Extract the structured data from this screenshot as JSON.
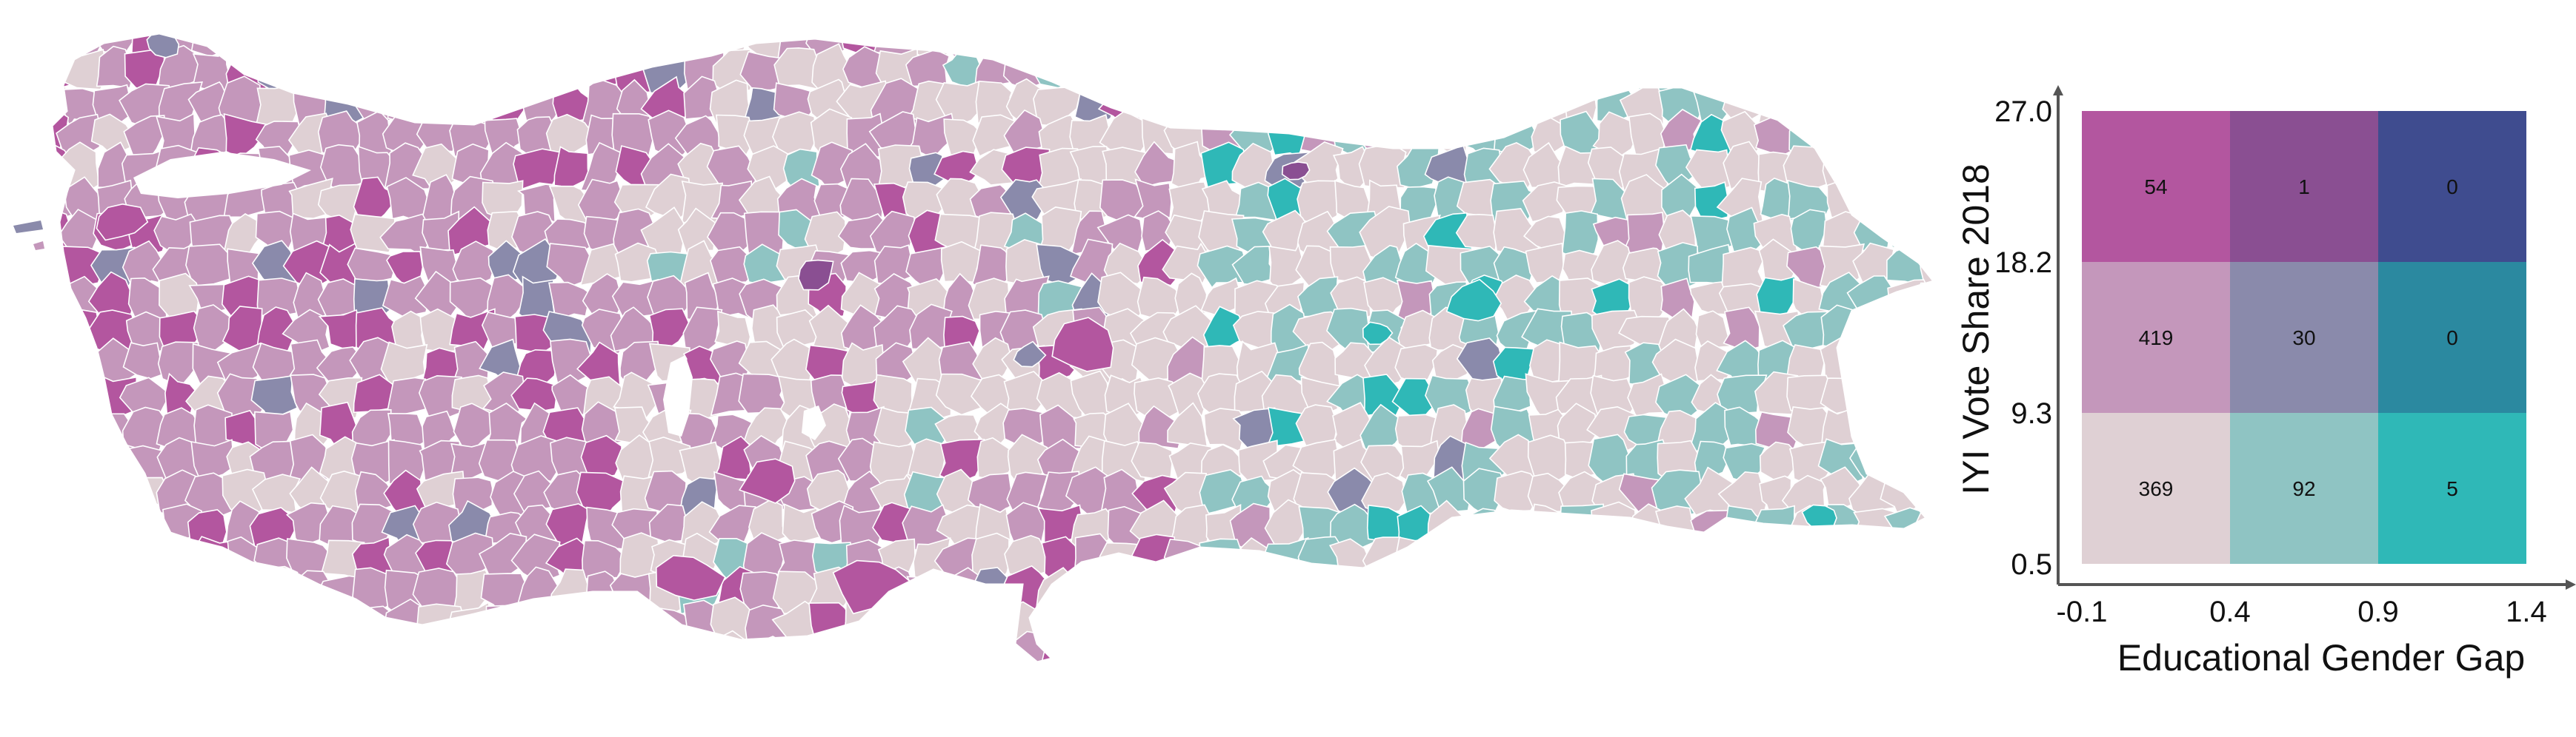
{
  "legend": {
    "xlabel": "Educational Gender Gap",
    "ylabel": "IYI Vote Share 2018",
    "x_ticks": [
      "-0.1",
      "0.4",
      "0.9",
      "1.4"
    ],
    "y_ticks": [
      "0.5",
      "9.3",
      "18.2",
      "27.0"
    ],
    "cells": [
      {
        "row": 0,
        "col": 0,
        "count": "54",
        "color": "#b3569f"
      },
      {
        "row": 0,
        "col": 1,
        "count": "1",
        "color": "#8a4f92"
      },
      {
        "row": 0,
        "col": 2,
        "count": "0",
        "color": "#3f4c8f"
      },
      {
        "row": 1,
        "col": 0,
        "count": "419",
        "color": "#c497bb"
      },
      {
        "row": 1,
        "col": 1,
        "count": "30",
        "color": "#8a8aab"
      },
      {
        "row": 1,
        "col": 2,
        "count": "0",
        "color": "#2b89a0"
      },
      {
        "row": 2,
        "col": 0,
        "count": "369",
        "color": "#dfd0d4"
      },
      {
        "row": 2,
        "col": 1,
        "count": "92",
        "color": "#8fc4c3"
      },
      {
        "row": 2,
        "col": 2,
        "count": "5",
        "color": "#2fb8b7"
      }
    ]
  },
  "map": {
    "palette": {
      "low_low": "#dfd0d4",
      "mid_low": "#c497bb",
      "high_low": "#b3569f",
      "low_mid": "#8fc4c3",
      "mid_mid": "#8a8aab",
      "high_mid": "#8a4f92",
      "low_high": "#2fb8b7",
      "border": "#ffffff"
    }
  }
}
